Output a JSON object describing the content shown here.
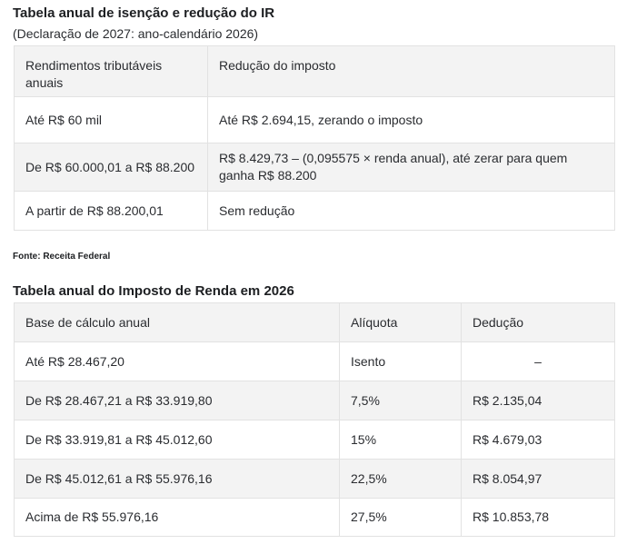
{
  "table1": {
    "title": "Tabela anual de isenção e redução do IR",
    "subtitle": "(Declaração de 2027: ano-calendário 2026)",
    "headers": [
      "Rendimentos tributáveis anuais",
      "Redução do imposto"
    ],
    "rows": [
      [
        "Até R$ 60 mil",
        "Até R$ 2.694,15, zerando o imposto"
      ],
      [
        "De R$ 60.000,01 a R$ 88.200",
        "R$ 8.429,73 – (0,095575 × renda anual), até zerar para quem ganha R$ 88.200"
      ],
      [
        "A partir de R$ 88.200,01",
        "Sem redução"
      ]
    ]
  },
  "source": "Fonte: Receita Federal",
  "table2": {
    "title": "Tabela anual do Imposto de Renda em 2026",
    "headers": [
      "Base de cálculo anual",
      "Alíquota",
      "Dedução"
    ],
    "rows": [
      [
        "Até R$ 28.467,20",
        "Isento",
        "–"
      ],
      [
        "De R$ 28.467,21 a R$ 33.919,80",
        "7,5%",
        "R$ 2.135,04"
      ],
      [
        "De R$ 33.919,81 a R$ 45.012,60",
        "15%",
        "R$ 4.679,03"
      ],
      [
        "De R$ 45.012,61 a R$ 55.976,16",
        "22,5%",
        "R$ 8.054,97"
      ],
      [
        "Acima de R$ 55.976,16",
        "27,5%",
        "R$ 10.853,78"
      ]
    ]
  }
}
